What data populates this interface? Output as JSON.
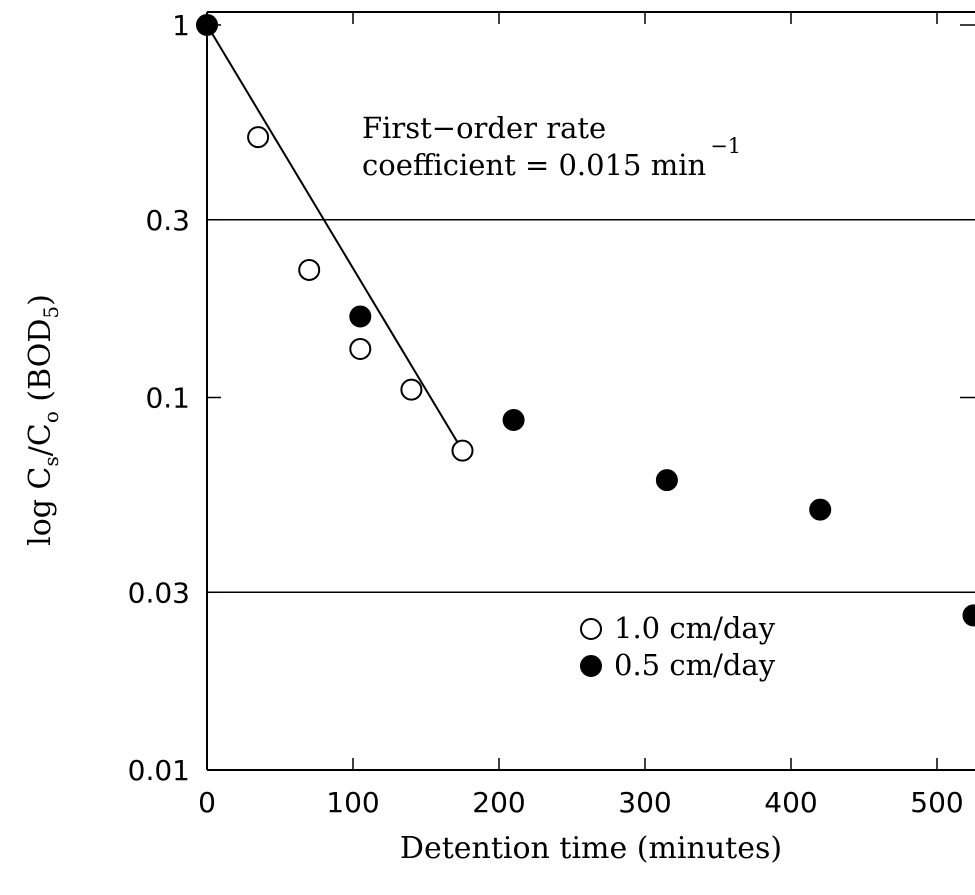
{
  "chart_data": {
    "type": "scatter",
    "xlabel": "Detention time (minutes)",
    "ylabel": {
      "prefix": "log C",
      "sub1": "s",
      "mid": "/C",
      "sub2": "o",
      "paren_open": " (BOD",
      "sub3": "5",
      "paren_close": ")"
    },
    "xlim": [
      0,
      530
    ],
    "ylim": [
      0.01,
      1
    ],
    "y_scale": "log",
    "x_ticks": [
      0,
      100,
      200,
      300,
      400,
      500
    ],
    "x_tick_labels": [
      "0",
      "100",
      "200",
      "300",
      "400",
      "500"
    ],
    "y_ticks": [
      1,
      0.3,
      0.1,
      0.03,
      0.01
    ],
    "y_tick_labels": [
      "1",
      "0.3",
      "0.1",
      "0.03",
      "0.01"
    ],
    "horizontal_gridlines": [
      0.3,
      0.03
    ],
    "annotation": {
      "line1": "First−order rate",
      "line2": "coefficient = 0.015 min",
      "superscript": "−1"
    },
    "fit_line": {
      "x": [
        0,
        175
      ],
      "y": [
        1,
        0.072
      ]
    },
    "legend_position": "bottom-right",
    "series": [
      {
        "name": "1.0 cm/day",
        "marker": "open-circle",
        "x": [
          35,
          70,
          105,
          140,
          175
        ],
        "y": [
          0.5,
          0.22,
          0.135,
          0.105,
          0.072
        ]
      },
      {
        "name": "0.5 cm/day",
        "marker": "filled-circle",
        "x": [
          0,
          105,
          210,
          315,
          420,
          525
        ],
        "y": [
          1,
          0.165,
          0.087,
          0.06,
          0.05,
          0.026
        ]
      }
    ]
  }
}
